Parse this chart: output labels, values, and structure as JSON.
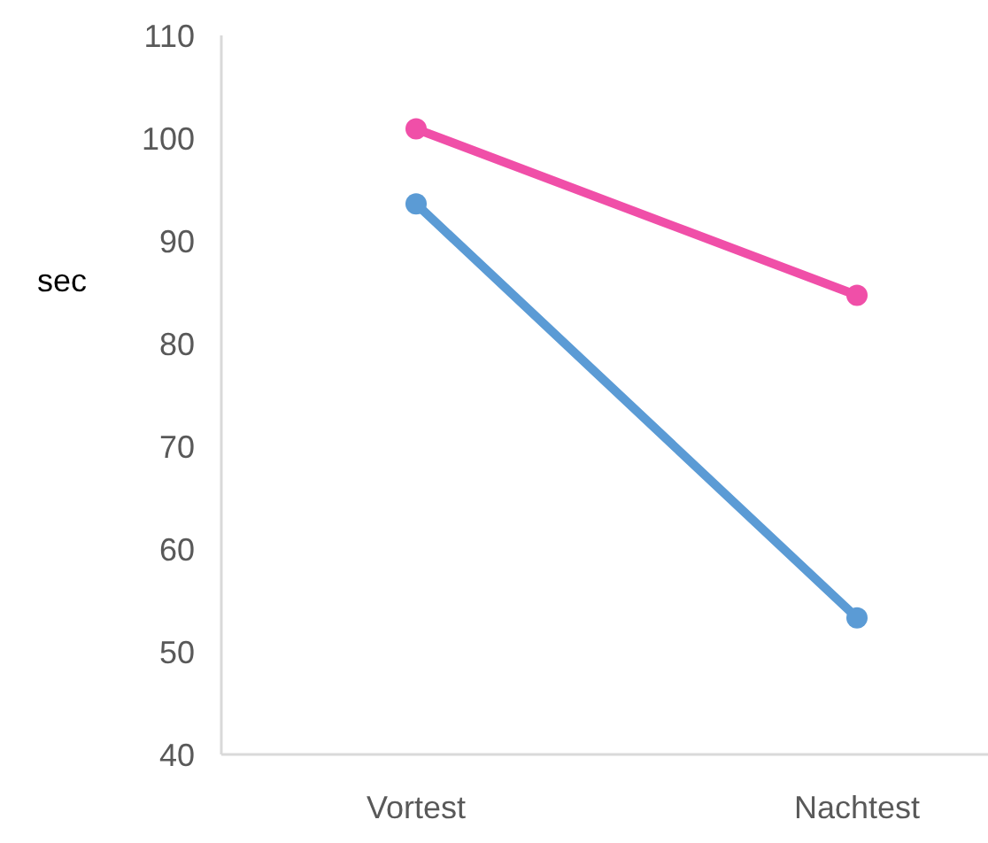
{
  "chart_data": {
    "type": "line",
    "ylabel": "sec",
    "categories": [
      "Vortest",
      "Nachtest"
    ],
    "ylim": [
      40,
      110
    ],
    "yticks": [
      40,
      50,
      60,
      70,
      80,
      90,
      100,
      110
    ],
    "marker": "circle",
    "grid": false,
    "series": [
      {
        "color": "#f04fa8",
        "values": [
          100.9,
          84.7
        ]
      },
      {
        "color": "#5b9bd5",
        "values": [
          93.6,
          53.3
        ]
      }
    ]
  }
}
